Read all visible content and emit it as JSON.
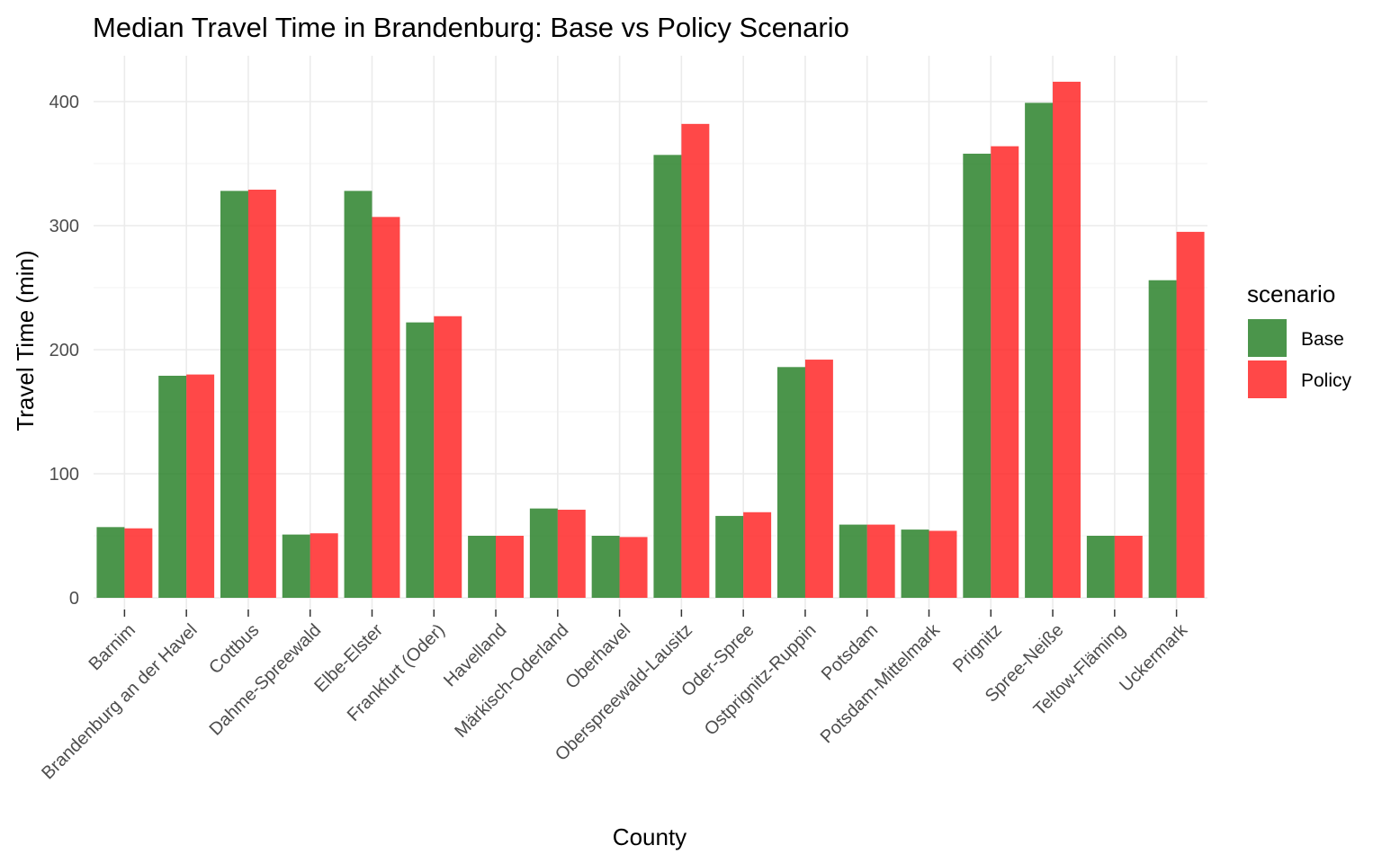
{
  "chart_data": {
    "type": "bar",
    "title": "Median Travel Time in Brandenburg: Base vs Policy Scenario",
    "xlabel": "County",
    "ylabel": "Travel Time (min)",
    "ylim": [
      0,
      430
    ],
    "yticks": [
      0,
      100,
      200,
      300,
      400
    ],
    "grid": true,
    "legend": {
      "title": "scenario",
      "position": "right"
    },
    "categories": [
      "Barnim",
      "Brandenburg an der Havel",
      "Cottbus",
      "Dahme-Spreewald",
      "Elbe-Elster",
      "Frankfurt (Oder)",
      "Havelland",
      "Märkisch-Oderland",
      "Oberhavel",
      "Oberspreewald-Lausitz",
      "Oder-Spree",
      "Ostprignitz-Ruppin",
      "Potsdam",
      "Potsdam-Mittelmark",
      "Prignitz",
      "Spree-Neiße",
      "Teltow-Fläming",
      "Uckermark"
    ],
    "series": [
      {
        "name": "Base",
        "color": "#1e7b1e",
        "values": [
          57,
          179,
          328,
          51,
          328,
          222,
          50,
          72,
          50,
          357,
          66,
          186,
          59,
          55,
          358,
          399,
          50,
          256
        ]
      },
      {
        "name": "Policy",
        "color": "#ff1a1a",
        "values": [
          56,
          180,
          329,
          52,
          307,
          227,
          50,
          71,
          49,
          382,
          69,
          192,
          59,
          54,
          364,
          416,
          50,
          295
        ]
      }
    ]
  }
}
